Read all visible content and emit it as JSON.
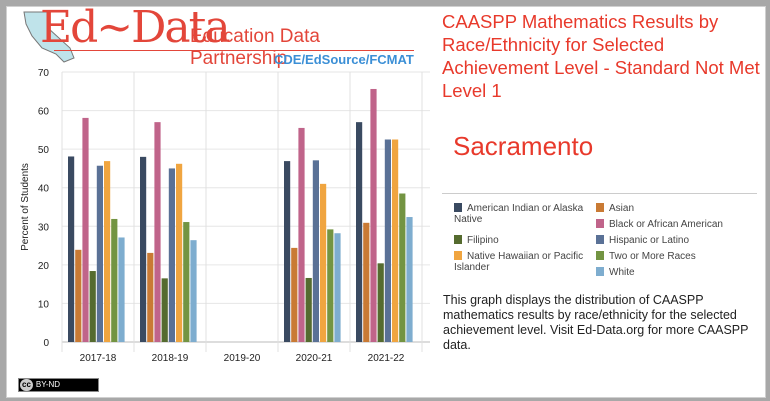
{
  "logo": {
    "main": "Ed~Data",
    "sub": "Education Data Partnership",
    "credit": "CDE/EdSource/FCMAT"
  },
  "title": "CAASPP Mathematics Results by Race/Ethnicity for Selected Achievement Level - Standard Not Met Level 1",
  "district": "Sacramento",
  "description": "This graph displays the distribution of CAASPP mathematics results by race/ethnicity for the selected achievement level. Visit Ed-Data.org for more CAASPP data.",
  "license": {
    "cc": "cc",
    "label": "BY-ND"
  },
  "chart_data": {
    "type": "bar",
    "title": "CAASPP Mathematics Results by Race/Ethnicity for Selected Achievement Level - Standard Not Met Level 1",
    "xlabel": "",
    "ylabel": "Percent of Students",
    "ylim": [
      0,
      70
    ],
    "yticks": [
      0,
      10,
      20,
      30,
      40,
      50,
      60,
      70
    ],
    "grid": true,
    "legend_position": "right",
    "categories": [
      "2017-18",
      "2018-19",
      "2019-20",
      "2020-21",
      "2021-22"
    ],
    "series": [
      {
        "name": "American Indian or Alaska Native",
        "color": "#3a4a61",
        "values": [
          48.1,
          48.0,
          null,
          46.9,
          57.0
        ]
      },
      {
        "name": "Asian",
        "color": "#c97a34",
        "values": [
          23.9,
          23.1,
          null,
          24.4,
          30.9
        ]
      },
      {
        "name": "Black or African American",
        "color": "#c0648a",
        "values": [
          58.1,
          57.0,
          null,
          55.5,
          65.6
        ]
      },
      {
        "name": "Filipino",
        "color": "#556b2f",
        "values": [
          18.4,
          16.5,
          null,
          16.6,
          20.4
        ]
      },
      {
        "name": "Hispanic or Latino",
        "color": "#5a7196",
        "values": [
          45.7,
          45.0,
          null,
          47.1,
          52.5
        ]
      },
      {
        "name": "Native Hawaiian or Pacific Islander",
        "color": "#f0a540",
        "values": [
          46.9,
          46.2,
          null,
          41.0,
          52.5
        ]
      },
      {
        "name": "Two or More Races",
        "color": "#739442",
        "values": [
          31.9,
          31.1,
          null,
          29.2,
          38.5
        ]
      },
      {
        "name": "White",
        "color": "#7eadcf",
        "values": [
          27.1,
          26.4,
          null,
          28.2,
          32.4
        ]
      }
    ]
  }
}
